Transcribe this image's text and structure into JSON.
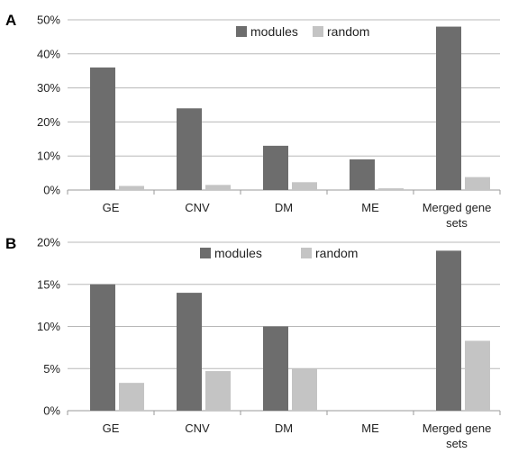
{
  "chart_data": [
    {
      "type": "bar",
      "panel": "A",
      "categories": [
        "GE",
        "CNV",
        "DM",
        "ME",
        "Merged gene sets"
      ],
      "series": [
        {
          "name": "modules",
          "values": [
            36,
            24,
            13,
            9,
            48
          ],
          "color": "#6d6d6d"
        },
        {
          "name": "random",
          "values": [
            1.2,
            1.5,
            2.3,
            0.5,
            3.8
          ],
          "color": "#c4c4c4"
        }
      ],
      "ylim": [
        0,
        50
      ],
      "yticks": [
        "0%",
        "10%",
        "20%",
        "30%",
        "40%",
        "50%"
      ],
      "grid": true,
      "legend": "top-center"
    },
    {
      "type": "bar",
      "panel": "B",
      "categories": [
        "GE",
        "CNV",
        "DM",
        "ME",
        "Merged gene sets"
      ],
      "series": [
        {
          "name": "modules",
          "values": [
            15,
            14,
            10,
            0,
            19
          ],
          "color": "#6d6d6d"
        },
        {
          "name": "random",
          "values": [
            3.3,
            4.7,
            5.0,
            0,
            8.3
          ],
          "color": "#c4c4c4"
        }
      ],
      "ylim": [
        0,
        20
      ],
      "yticks": [
        "0%",
        "5%",
        "10%",
        "15%",
        "20%"
      ],
      "grid": true,
      "legend": "top-center"
    }
  ]
}
